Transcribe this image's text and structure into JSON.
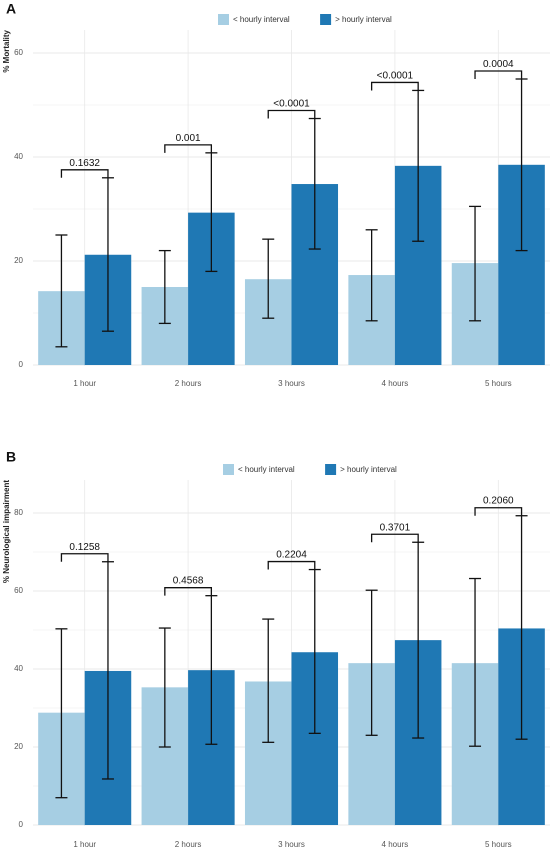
{
  "chart_data": [
    {
      "panel": "A",
      "type": "bar",
      "ylabel": "% Mortality",
      "ylim": [
        0,
        85
      ],
      "yticks": [
        0,
        20,
        40,
        60
      ],
      "grid": true,
      "legend_position": "top",
      "categories": [
        "1 hour",
        "2 hours",
        "3 hours",
        "4 hours",
        "5 hours"
      ],
      "series": [
        {
          "name": "< hourly interval",
          "color": "#a6cee3",
          "values": [
            14.2,
            15.0,
            16.5,
            17.3,
            19.6
          ],
          "error_low": [
            3.5,
            8.0,
            9.0,
            8.5,
            8.5
          ],
          "error_high": [
            25.0,
            22.0,
            24.2,
            26.0,
            30.5
          ]
        },
        {
          "name": "> hourly interval",
          "color": "#1f78b4",
          "values": [
            21.2,
            29.3,
            34.8,
            38.3,
            38.5
          ],
          "error_low": [
            6.5,
            18.0,
            22.3,
            23.8,
            22.0
          ],
          "error_high": [
            36.0,
            40.8,
            47.4,
            52.8,
            55.0
          ]
        }
      ],
      "pvalues": [
        "0.1632",
        "0.001",
        "<0.0001",
        "<0.0001",
        "0.0004"
      ]
    },
    {
      "panel": "B",
      "type": "bar",
      "ylabel": "% Neurological impairment",
      "ylim": [
        0,
        85
      ],
      "yticks": [
        0,
        20,
        40,
        60,
        80
      ],
      "grid": true,
      "legend_position": "top",
      "categories": [
        "1 hour",
        "2 hours",
        "3 hours",
        "4 hours",
        "5 hours"
      ],
      "series": [
        {
          "name": "< hourly interval",
          "color": "#a6cee3",
          "values": [
            28.8,
            35.3,
            36.8,
            41.5,
            41.5
          ],
          "error_low": [
            7.0,
            20.0,
            21.2,
            23.0,
            20.2
          ],
          "error_high": [
            50.3,
            50.5,
            52.8,
            60.2,
            63.2
          ]
        },
        {
          "name": "> hourly interval",
          "color": "#1f78b4",
          "values": [
            39.5,
            39.7,
            44.3,
            47.4,
            50.4
          ],
          "error_low": [
            11.8,
            20.7,
            23.5,
            22.3,
            22.0
          ],
          "error_high": [
            67.5,
            58.8,
            65.5,
            72.5,
            79.3
          ]
        }
      ],
      "pvalues": [
        "0.1258",
        "0.4568",
        "0.2204",
        "0.3701",
        "0.2060"
      ]
    }
  ]
}
